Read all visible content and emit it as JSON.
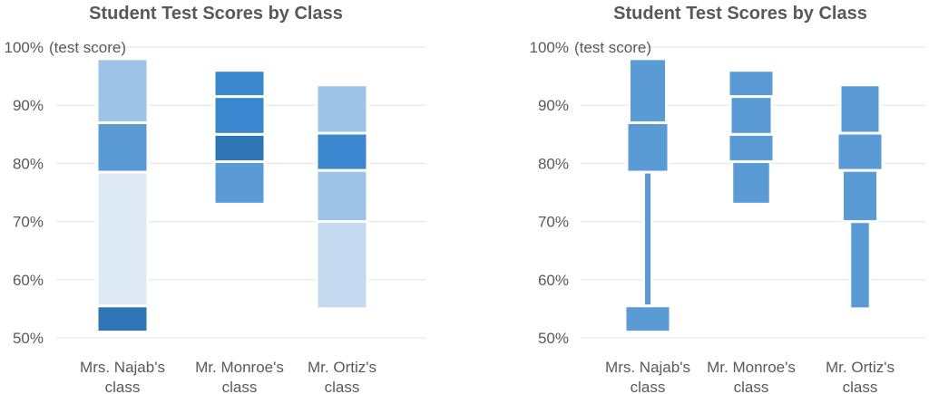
{
  "chart_data": [
    {
      "type": "bar",
      "subtype": "stacked-range",
      "title": "Student Test Scores by Class",
      "ylabel": "(test score)",
      "ylim": [
        50,
        100
      ],
      "yticks": [
        "50%",
        "60%",
        "70%",
        "80%",
        "90%",
        "100%"
      ],
      "grid": true,
      "categories": [
        "Mrs. Najab's class",
        "Mr. Monroe's class",
        "Mr. Ortiz's class"
      ],
      "segments": [
        [
          {
            "from": 51,
            "to": 55.5,
            "color": "#2e75b6"
          },
          {
            "from": 55.5,
            "to": 78.5,
            "color": "#deebf7"
          },
          {
            "from": 78.5,
            "to": 87,
            "color": "#5b9bd5"
          },
          {
            "from": 87,
            "to": 98,
            "color": "#9dc3e6"
          }
        ],
        [
          {
            "from": 73,
            "to": 80.3,
            "color": "#5b9bd5"
          },
          {
            "from": 80.3,
            "to": 85,
            "color": "#2e75b6"
          },
          {
            "from": 85,
            "to": 91.5,
            "color": "#3a87d0"
          },
          {
            "from": 91.5,
            "to": 96,
            "color": "#3a87d0"
          }
        ],
        [
          {
            "from": 55,
            "to": 70,
            "color": "#c5daf0"
          },
          {
            "from": 70,
            "to": 78.8,
            "color": "#9dc3e6"
          },
          {
            "from": 78.8,
            "to": 85.2,
            "color": "#3a87d0"
          },
          {
            "from": 85.2,
            "to": 93.5,
            "color": "#9dc3e6"
          }
        ]
      ]
    },
    {
      "type": "bar",
      "subtype": "violin-like-range",
      "title": "Student Test Scores by Class",
      "ylabel": "(test score)",
      "ylim": [
        50,
        100
      ],
      "yticks": [
        "50%",
        "60%",
        "70%",
        "80%",
        "90%",
        "100%"
      ],
      "grid": true,
      "color": "#5b9bd5",
      "categories": [
        "Mrs. Najab's class",
        "Mr. Monroe's class",
        "Mr. Ortiz's class"
      ],
      "segments": [
        [
          {
            "from": 51,
            "to": 55.5,
            "width": 1.0
          },
          {
            "from": 55.5,
            "to": 78.5,
            "width": 0.18
          },
          {
            "from": 78.5,
            "to": 87,
            "width": 0.92
          },
          {
            "from": 87,
            "to": 98,
            "width": 0.82
          }
        ],
        [
          {
            "from": 73,
            "to": 80.3,
            "width": 0.85
          },
          {
            "from": 80.3,
            "to": 85,
            "width": 1.0
          },
          {
            "from": 85,
            "to": 91.5,
            "width": 0.92
          },
          {
            "from": 91.5,
            "to": 96,
            "width": 1.0
          }
        ],
        [
          {
            "from": 55,
            "to": 70,
            "width": 0.45
          },
          {
            "from": 70,
            "to": 78.8,
            "width": 0.78
          },
          {
            "from": 78.8,
            "to": 85.2,
            "width": 1.0
          },
          {
            "from": 85.2,
            "to": 93.5,
            "width": 0.88
          }
        ]
      ]
    }
  ]
}
